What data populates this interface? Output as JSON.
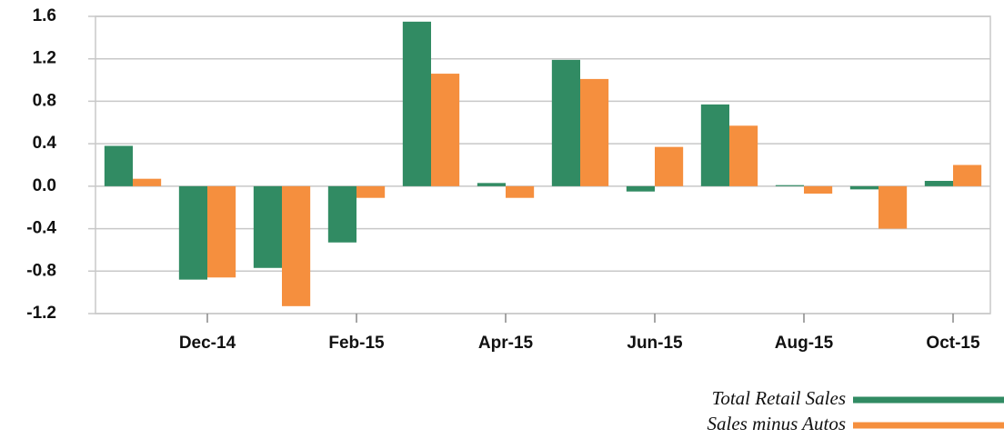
{
  "chart_data": {
    "type": "bar",
    "categories": [
      null,
      "Dec-14",
      null,
      "Feb-15",
      null,
      "Apr-15",
      null,
      "Jun-15",
      null,
      "Aug-15",
      null,
      "Oct-15"
    ],
    "series": [
      {
        "name": "Total Retail Sales",
        "color": "#318b63",
        "values": [
          0.38,
          -0.88,
          -0.77,
          -0.53,
          1.55,
          0.03,
          1.19,
          -0.05,
          0.77,
          0.01,
          -0.03,
          0.05
        ]
      },
      {
        "name": "Sales minus Autos",
        "color": "#f58f3e",
        "values": [
          0.07,
          -0.86,
          -1.13,
          -0.11,
          1.06,
          -0.11,
          1.01,
          0.37,
          0.57,
          -0.07,
          -0.4,
          0.2
        ]
      }
    ],
    "ylim": [
      -1.2,
      1.6
    ],
    "yticks": [
      -1.2,
      -0.8,
      -0.4,
      {
        "value": 0,
        "label": "0.0"
      },
      0.4,
      0.8,
      1.2,
      1.6
    ],
    "grid": true,
    "legend": "bottom-right"
  }
}
